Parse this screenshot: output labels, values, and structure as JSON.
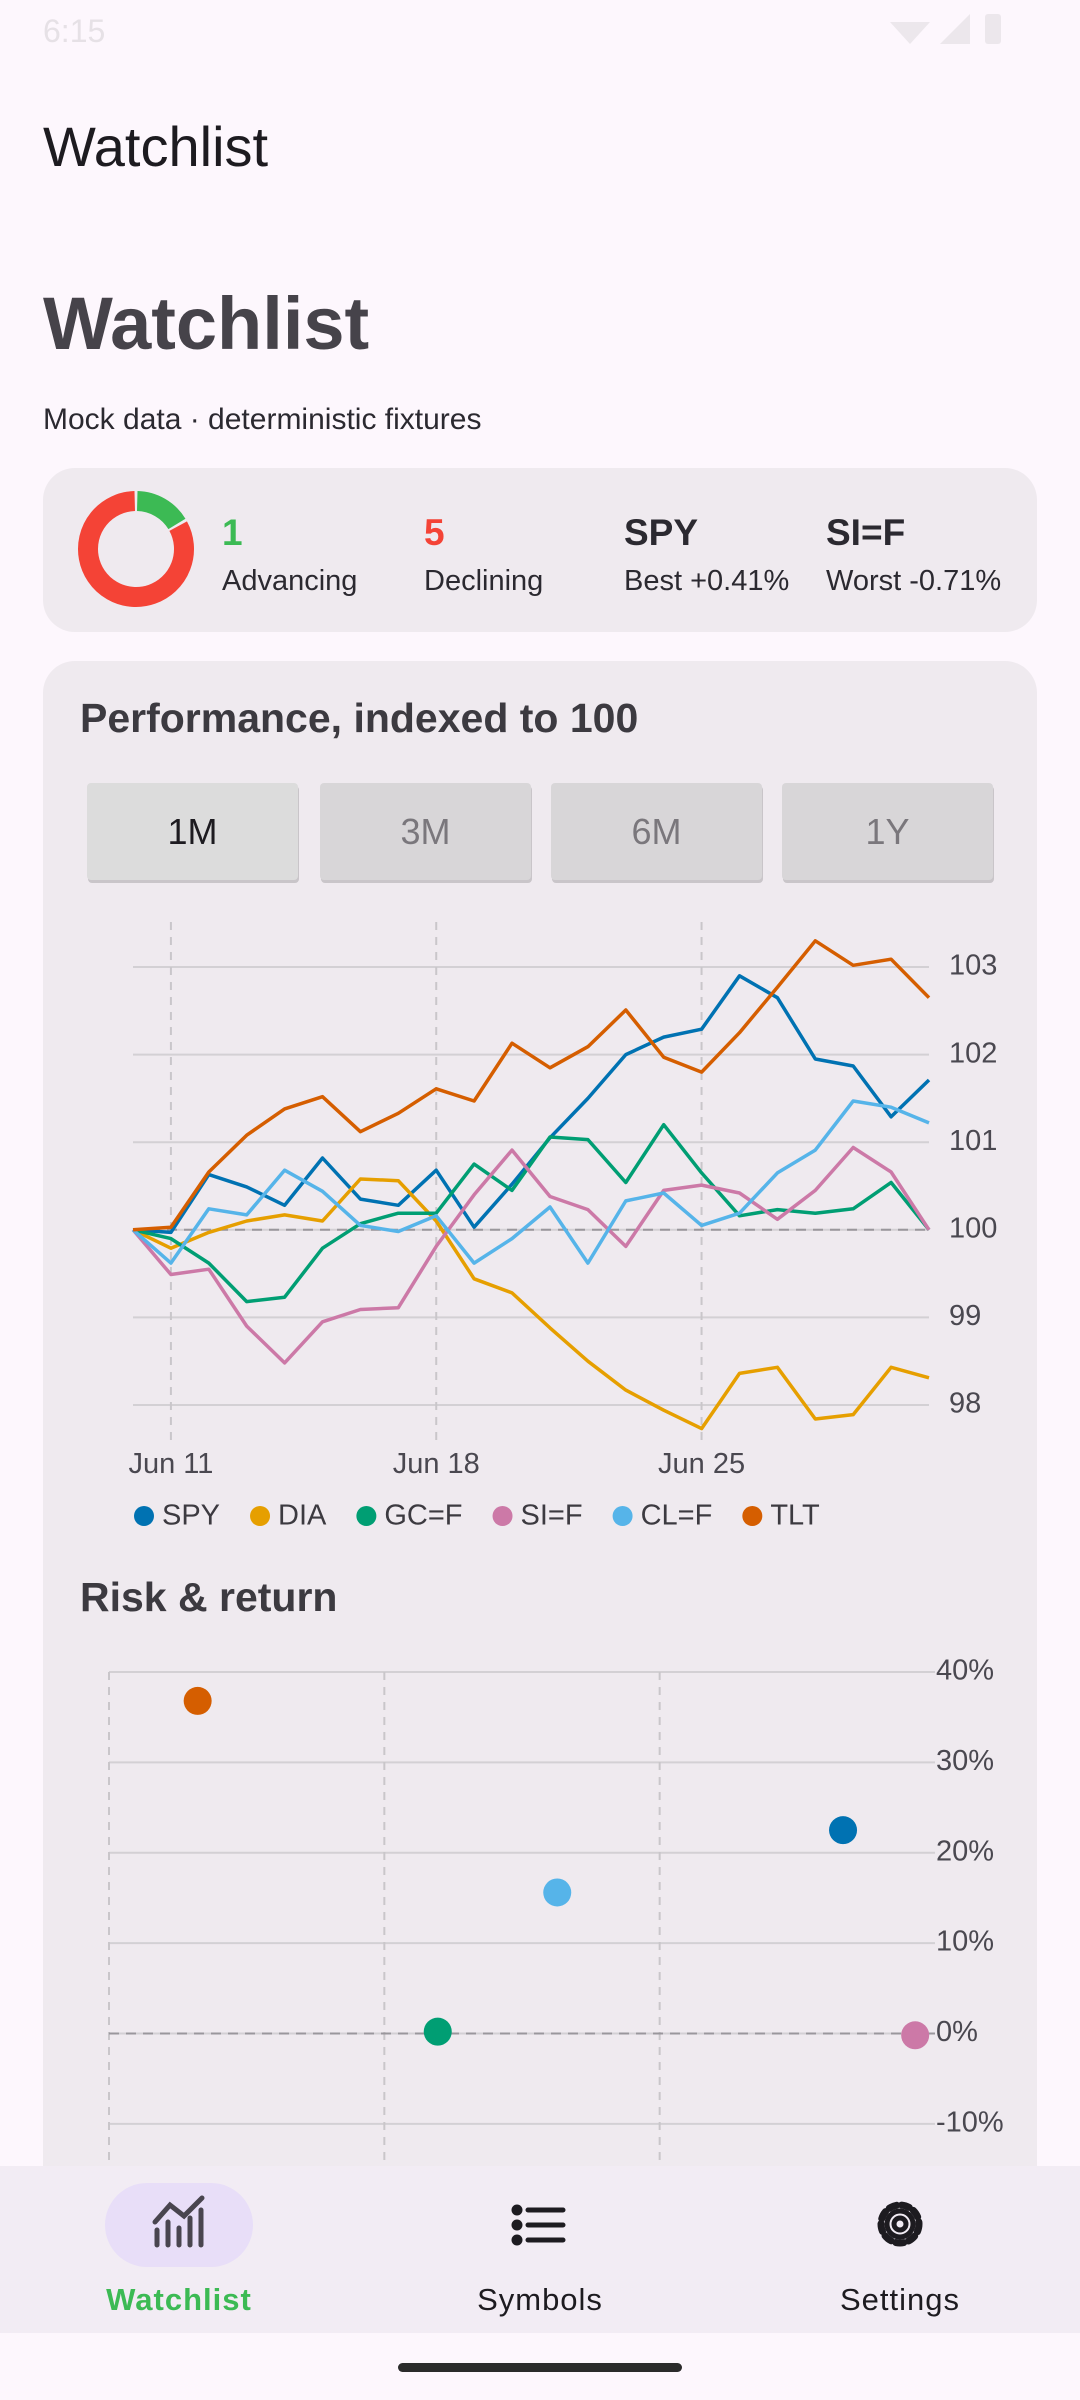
{
  "status_bar": {
    "time": "6:15"
  },
  "app_bar": {
    "title": "Watchlist"
  },
  "header": {
    "title": "Watchlist",
    "subtitle": "Mock data · deterministic fixtures"
  },
  "summary": {
    "advancing": {
      "count": 1,
      "label": "Advancing",
      "color": "#3cba54"
    },
    "declining": {
      "count": 5,
      "label": "Declining",
      "color": "#f44336"
    },
    "best": {
      "symbol": "SPY",
      "label": "Best +0.41%"
    },
    "worst": {
      "symbol": "SI=F",
      "label": "Worst -0.71%"
    }
  },
  "tabs": {
    "items": [
      "1M",
      "3M",
      "6M",
      "1Y"
    ],
    "selected": 0
  },
  "chart_data": [
    {
      "type": "line",
      "title": "Performance, indexed to 100",
      "categories": [
        null,
        "Jun 11",
        null,
        null,
        null,
        null,
        null,
        null,
        "Jun 18",
        null,
        null,
        null,
        null,
        null,
        null,
        "Jun 25",
        null,
        null,
        null,
        null,
        null,
        null
      ],
      "series": [
        {
          "name": "SPY",
          "color": "#0072b2",
          "values": [
            100,
            99.97,
            100.63,
            100.49,
            100.28,
            100.82,
            100.35,
            100.28,
            100.68,
            100.03,
            100.52,
            101.05,
            101.5,
            102.0,
            102.2,
            102.29,
            102.9,
            102.65,
            101.95,
            101.87,
            101.29,
            101.71
          ]
        },
        {
          "name": "DIA",
          "color": "#e69f00",
          "values": [
            100,
            99.79,
            99.97,
            100.1,
            100.17,
            100.1,
            100.58,
            100.56,
            100.1,
            99.44,
            99.28,
            98.88,
            98.5,
            98.17,
            97.94,
            97.73,
            98.36,
            98.43,
            97.84,
            97.89,
            98.43,
            98.31
          ]
        },
        {
          "name": "GC=F",
          "color": "#009e73",
          "values": [
            100,
            99.9,
            99.62,
            99.18,
            99.23,
            99.79,
            100.07,
            100.19,
            100.19,
            100.75,
            100.45,
            101.06,
            101.03,
            100.54,
            101.2,
            100.65,
            100.16,
            100.23,
            100.19,
            100.24,
            100.54,
            100
          ]
        },
        {
          "name": "SI=F",
          "color": "#cc79a7",
          "values": [
            100,
            99.49,
            99.55,
            98.9,
            98.48,
            98.95,
            99.09,
            99.11,
            99.81,
            100.4,
            100.91,
            100.38,
            100.23,
            99.81,
            100.45,
            100.51,
            100.42,
            100.12,
            100.45,
            100.94,
            100.66,
            100
          ]
        },
        {
          "name": "CL=F",
          "color": "#56b4e9",
          "values": [
            100,
            99.62,
            100.24,
            100.17,
            100.68,
            100.44,
            100.05,
            99.98,
            100.16,
            99.62,
            99.9,
            100.26,
            99.62,
            100.33,
            100.42,
            100.05,
            100.19,
            100.65,
            100.91,
            101.47,
            101.4,
            101.22
          ]
        },
        {
          "name": "TLT",
          "color": "#d55e00",
          "values": [
            100,
            100.03,
            100.66,
            101.08,
            101.38,
            101.52,
            101.12,
            101.33,
            101.61,
            101.47,
            102.13,
            101.85,
            102.09,
            102.51,
            101.97,
            101.8,
            102.25,
            102.77,
            103.3,
            103.02,
            103.09,
            102.65
          ]
        }
      ],
      "ylim": [
        97.6,
        103.4
      ],
      "yticks": [
        98,
        99,
        100,
        101,
        102,
        103
      ],
      "baseline": 100,
      "grid": true,
      "legend": "bottom"
    },
    {
      "type": "scatter",
      "title": "Risk & return",
      "x": [
        13.33,
        5.97,
        14.64,
        8.14,
        1.61
      ],
      "values": [
        22.5,
        0.2,
        -0.2,
        15.6,
        36.8
      ],
      "colors": [
        "#0072b2",
        "#009e73",
        "#cc79a7",
        "#56b4e9",
        "#d55e00"
      ],
      "xlim": [
        0,
        15
      ],
      "xticks": [
        0,
        5,
        10
      ],
      "ylim": [
        -15,
        40
      ],
      "yticks": [
        {
          "value": 40,
          "label": "40%"
        },
        {
          "value": 30,
          "label": "30%"
        },
        {
          "value": 20,
          "label": "20%"
        },
        {
          "value": 10,
          "label": "10%"
        },
        {
          "value": 0,
          "label": "0%"
        },
        {
          "value": -10,
          "label": "-10%"
        }
      ],
      "baseline": 0,
      "grid": true
    }
  ],
  "nav": {
    "items": [
      "Watchlist",
      "Symbols",
      "Settings"
    ],
    "selected": 0
  }
}
